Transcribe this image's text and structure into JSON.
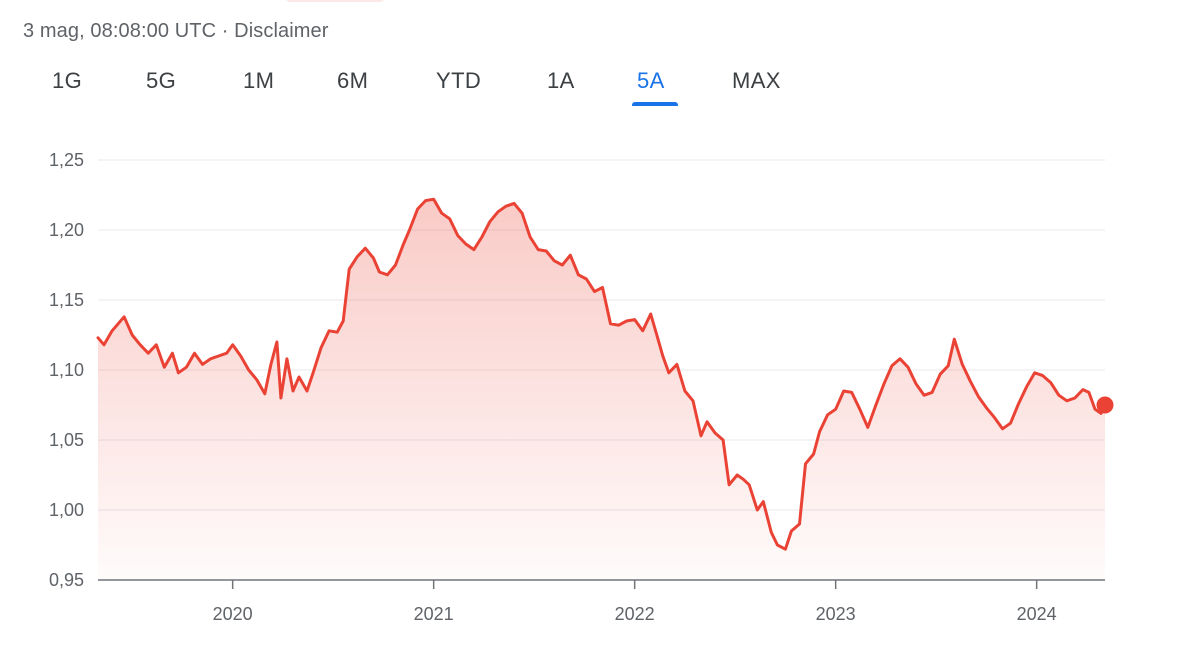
{
  "header": {
    "timestamp": "3 mag, 08:08:00 UTC · Disclaimer"
  },
  "tabs": [
    {
      "label": "1G"
    },
    {
      "label": "5G"
    },
    {
      "label": "1M"
    },
    {
      "label": "6M"
    },
    {
      "label": "YTD"
    },
    {
      "label": "1A"
    },
    {
      "label": "5A",
      "active": true
    },
    {
      "label": "MAX"
    }
  ],
  "colors": {
    "line": "#ea4335",
    "accent": "#1a73e8",
    "grid": "#e8eaed"
  },
  "chart_data": {
    "type": "area",
    "y_ticks": [
      "1,25",
      "1,20",
      "1,15",
      "1,10",
      "1,05",
      "1,00",
      "0,95"
    ],
    "y_tick_values": [
      1.25,
      1.2,
      1.15,
      1.1,
      1.05,
      1.0,
      0.95
    ],
    "ylim": [
      0.95,
      1.25
    ],
    "x_ticks": [
      "2020",
      "2021",
      "2022",
      "2023",
      "2024"
    ],
    "x_tick_values": [
      2020.0,
      2021.0,
      2022.0,
      2023.0,
      2024.0
    ],
    "xlim": [
      2019.33,
      2024.34
    ],
    "grid": true,
    "series": [
      {
        "points": [
          [
            2019.33,
            1.123
          ],
          [
            2019.36,
            1.118
          ],
          [
            2019.4,
            1.128
          ],
          [
            2019.43,
            1.133
          ],
          [
            2019.46,
            1.138
          ],
          [
            2019.5,
            1.125
          ],
          [
            2019.54,
            1.118
          ],
          [
            2019.58,
            1.112
          ],
          [
            2019.62,
            1.118
          ],
          [
            2019.66,
            1.102
          ],
          [
            2019.7,
            1.112
          ],
          [
            2019.73,
            1.098
          ],
          [
            2019.77,
            1.102
          ],
          [
            2019.81,
            1.112
          ],
          [
            2019.85,
            1.104
          ],
          [
            2019.89,
            1.108
          ],
          [
            2019.93,
            1.11
          ],
          [
            2019.97,
            1.112
          ],
          [
            2020.0,
            1.118
          ],
          [
            2020.04,
            1.11
          ],
          [
            2020.08,
            1.1
          ],
          [
            2020.12,
            1.093
          ],
          [
            2020.16,
            1.083
          ],
          [
            2020.19,
            1.104
          ],
          [
            2020.22,
            1.12
          ],
          [
            2020.24,
            1.08
          ],
          [
            2020.27,
            1.108
          ],
          [
            2020.3,
            1.085
          ],
          [
            2020.33,
            1.095
          ],
          [
            2020.37,
            1.085
          ],
          [
            2020.4,
            1.098
          ],
          [
            2020.44,
            1.116
          ],
          [
            2020.48,
            1.128
          ],
          [
            2020.52,
            1.127
          ],
          [
            2020.55,
            1.135
          ],
          [
            2020.58,
            1.172
          ],
          [
            2020.62,
            1.181
          ],
          [
            2020.66,
            1.187
          ],
          [
            2020.7,
            1.18
          ],
          [
            2020.73,
            1.17
          ],
          [
            2020.77,
            1.168
          ],
          [
            2020.81,
            1.175
          ],
          [
            2020.85,
            1.19
          ],
          [
            2020.88,
            1.2
          ],
          [
            2020.92,
            1.215
          ],
          [
            2020.96,
            1.221
          ],
          [
            2021.0,
            1.222
          ],
          [
            2021.04,
            1.212
          ],
          [
            2021.08,
            1.208
          ],
          [
            2021.12,
            1.196
          ],
          [
            2021.16,
            1.19
          ],
          [
            2021.2,
            1.186
          ],
          [
            2021.24,
            1.195
          ],
          [
            2021.28,
            1.206
          ],
          [
            2021.32,
            1.213
          ],
          [
            2021.36,
            1.217
          ],
          [
            2021.4,
            1.219
          ],
          [
            2021.44,
            1.212
          ],
          [
            2021.48,
            1.195
          ],
          [
            2021.52,
            1.186
          ],
          [
            2021.56,
            1.185
          ],
          [
            2021.6,
            1.178
          ],
          [
            2021.64,
            1.175
          ],
          [
            2021.68,
            1.182
          ],
          [
            2021.72,
            1.168
          ],
          [
            2021.76,
            1.165
          ],
          [
            2021.8,
            1.156
          ],
          [
            2021.84,
            1.159
          ],
          [
            2021.88,
            1.133
          ],
          [
            2021.92,
            1.132
          ],
          [
            2021.96,
            1.135
          ],
          [
            2022.0,
            1.136
          ],
          [
            2022.04,
            1.128
          ],
          [
            2022.08,
            1.14
          ],
          [
            2022.11,
            1.125
          ],
          [
            2022.14,
            1.11
          ],
          [
            2022.17,
            1.098
          ],
          [
            2022.21,
            1.104
          ],
          [
            2022.25,
            1.085
          ],
          [
            2022.29,
            1.078
          ],
          [
            2022.33,
            1.053
          ],
          [
            2022.36,
            1.063
          ],
          [
            2022.4,
            1.055
          ],
          [
            2022.44,
            1.05
          ],
          [
            2022.47,
            1.018
          ],
          [
            2022.51,
            1.025
          ],
          [
            2022.54,
            1.022
          ],
          [
            2022.57,
            1.018
          ],
          [
            2022.61,
            1.0
          ],
          [
            2022.64,
            1.006
          ],
          [
            2022.68,
            0.984
          ],
          [
            2022.71,
            0.975
          ],
          [
            2022.75,
            0.972
          ],
          [
            2022.78,
            0.985
          ],
          [
            2022.82,
            0.99
          ],
          [
            2022.85,
            1.033
          ],
          [
            2022.89,
            1.04
          ],
          [
            2022.92,
            1.056
          ],
          [
            2022.96,
            1.068
          ],
          [
            2023.0,
            1.072
          ],
          [
            2023.04,
            1.085
          ],
          [
            2023.08,
            1.084
          ],
          [
            2023.12,
            1.072
          ],
          [
            2023.16,
            1.059
          ],
          [
            2023.2,
            1.075
          ],
          [
            2023.24,
            1.09
          ],
          [
            2023.28,
            1.103
          ],
          [
            2023.32,
            1.108
          ],
          [
            2023.36,
            1.102
          ],
          [
            2023.4,
            1.09
          ],
          [
            2023.44,
            1.082
          ],
          [
            2023.48,
            1.084
          ],
          [
            2023.52,
            1.097
          ],
          [
            2023.56,
            1.103
          ],
          [
            2023.59,
            1.122
          ],
          [
            2023.63,
            1.104
          ],
          [
            2023.67,
            1.092
          ],
          [
            2023.71,
            1.081
          ],
          [
            2023.75,
            1.073
          ],
          [
            2023.79,
            1.066
          ],
          [
            2023.83,
            1.058
          ],
          [
            2023.87,
            1.062
          ],
          [
            2023.91,
            1.076
          ],
          [
            2023.95,
            1.088
          ],
          [
            2023.99,
            1.098
          ],
          [
            2024.03,
            1.096
          ],
          [
            2024.07,
            1.091
          ],
          [
            2024.11,
            1.082
          ],
          [
            2024.15,
            1.078
          ],
          [
            2024.19,
            1.08
          ],
          [
            2024.23,
            1.086
          ],
          [
            2024.26,
            1.084
          ],
          [
            2024.29,
            1.072
          ],
          [
            2024.32,
            1.069
          ],
          [
            2024.34,
            1.075
          ]
        ]
      }
    ]
  }
}
